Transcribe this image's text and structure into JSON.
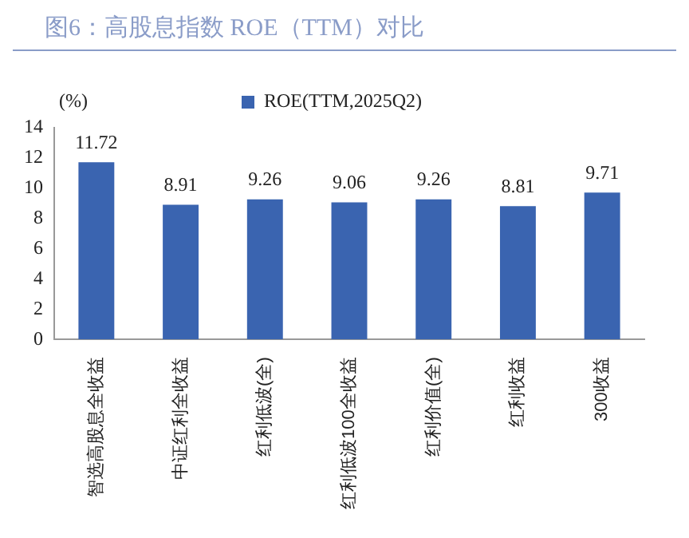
{
  "chart_data": {
    "type": "bar",
    "title": "图6：高股息指数 ROE（TTM）对比",
    "ylabel": "(%)",
    "categories": [
      "智选高股息全收益",
      "中证红利全收益",
      "红利低波(全)",
      "红利低波100全收益",
      "红利价值(全)",
      "红利收益",
      "300收益"
    ],
    "series": [
      {
        "name": "ROE(TTM,2025Q2)",
        "color": "#3a64b0",
        "values": [
          11.72,
          8.91,
          9.26,
          9.06,
          9.26,
          8.81,
          9.71
        ]
      }
    ],
    "ylim": [
      0,
      14
    ],
    "yticks": [
      0,
      2,
      4,
      6,
      8,
      10,
      12,
      14
    ],
    "grid": false,
    "legend": "top",
    "data_labels": true
  }
}
